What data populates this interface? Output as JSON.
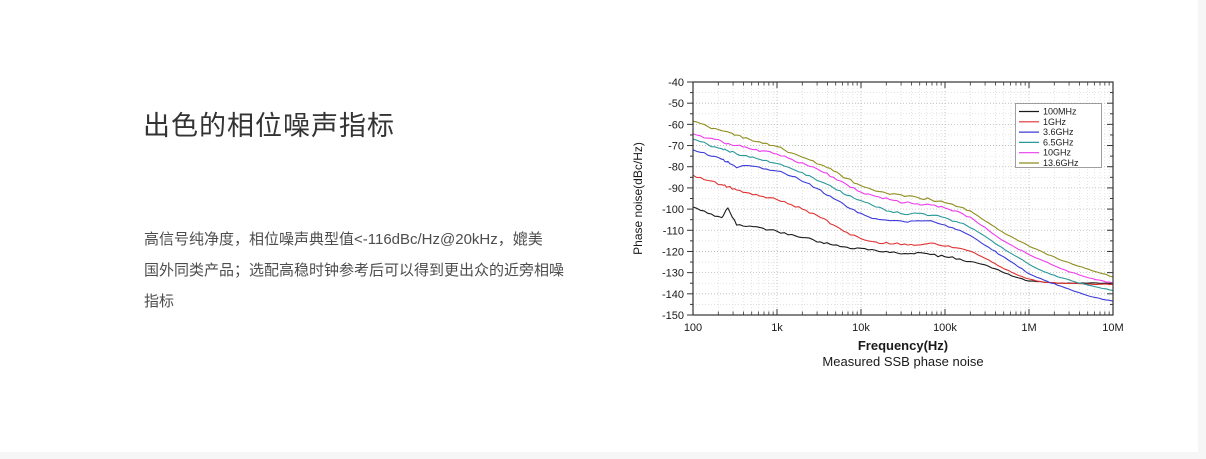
{
  "page": {
    "background_color": "#f6f6f6",
    "card_color": "#ffffff"
  },
  "section": {
    "title": "出色的相位噪声指标",
    "description": "高信号纯净度，相位噪声典型值<-116dBc/Hz@20kHz，媲美\n国外同类产品；选配高稳时钟参考后可以得到更出众的近旁相噪\n指标"
  },
  "chart_data": {
    "type": "line",
    "title": "Measured SSB phase noise",
    "xlabel": "Frequency(Hz)",
    "ylabel": "Phase noise(dBc/Hz)",
    "x_scale": "log",
    "xlim": [
      100,
      10000000
    ],
    "ylim": [
      -150,
      -40
    ],
    "x_tick_labels": [
      "100",
      "1k",
      "10k",
      "100k",
      "1M",
      "10M"
    ],
    "y_ticks": [
      -40,
      -50,
      -60,
      -70,
      -80,
      -90,
      -100,
      -110,
      -120,
      -130,
      -140,
      -150
    ],
    "grid": "dotted major and minor",
    "legend_position": "top-right",
    "frame_color": "#333333",
    "x": [
      100,
      150,
      220,
      260,
      330,
      470,
      680,
      1000,
      1500,
      2200,
      3300,
      4700,
      6800,
      10000,
      15000,
      22000,
      33000,
      47000,
      68000,
      100000,
      150000,
      220000,
      330000,
      470000,
      680000,
      1000000,
      1500000,
      2200000,
      3300000,
      4700000,
      6800000,
      10000000
    ],
    "series": [
      {
        "name": "100MHz",
        "color": "#1a1a1a",
        "values": [
          -99,
          -102,
          -104,
          -99.5,
          -107.5,
          -108,
          -109,
          -110.5,
          -112,
          -113.5,
          -115.5,
          -117,
          -118,
          -118.5,
          -119.5,
          -120.5,
          -121,
          -120.5,
          -121.5,
          -122.5,
          -123.5,
          -125,
          -127,
          -129.5,
          -132,
          -134,
          -134.5,
          -135,
          -135,
          -135,
          -135,
          -135
        ]
      },
      {
        "name": "1GHz",
        "color": "#e03232",
        "values": [
          -84,
          -86.5,
          -88.5,
          -89.5,
          -91,
          -92.5,
          -94,
          -95.5,
          -98,
          -100.5,
          -104,
          -107.5,
          -111,
          -114,
          -115.5,
          -116.5,
          -116.5,
          -117,
          -116,
          -117.5,
          -118.5,
          -120.5,
          -124,
          -127.5,
          -130.5,
          -133,
          -134.5,
          -135,
          -135,
          -135.5,
          -135.5,
          -135.5
        ]
      },
      {
        "name": "3.6GHz",
        "color": "#3c3cd8",
        "values": [
          -72,
          -74.5,
          -76.5,
          -77.5,
          -80.5,
          -79.5,
          -81,
          -82,
          -84.5,
          -87.5,
          -91,
          -95,
          -99,
          -102,
          -104.5,
          -105.5,
          -106,
          -105.5,
          -105.5,
          -107.5,
          -110,
          -113.5,
          -118,
          -122,
          -126,
          -130.5,
          -133.5,
          -136,
          -138.5,
          -140.5,
          -142,
          -143.5
        ]
      },
      {
        "name": "6.5GHz",
        "color": "#2a9898",
        "values": [
          -67,
          -69.5,
          -71.5,
          -72.5,
          -74,
          -75.5,
          -77,
          -78.5,
          -81,
          -84,
          -87,
          -90,
          -93.5,
          -96,
          -99,
          -101,
          -102.5,
          -102,
          -103,
          -104,
          -106.5,
          -109.5,
          -114,
          -118,
          -122,
          -126,
          -129.5,
          -132,
          -134,
          -135.5,
          -137,
          -138.5
        ]
      },
      {
        "name": "10GHz",
        "color": "#ee3cee",
        "values": [
          -64.5,
          -66.5,
          -68,
          -69,
          -70,
          -71.5,
          -72.5,
          -74,
          -76.5,
          -79,
          -82,
          -85,
          -88.5,
          -92,
          -94,
          -95.5,
          -97,
          -97.5,
          -98,
          -99.5,
          -101.5,
          -105,
          -110,
          -114.5,
          -118,
          -121.5,
          -124.5,
          -127.5,
          -130,
          -132,
          -133.5,
          -135
        ]
      },
      {
        "name": "13.6GHz",
        "color": "#8e8e1e",
        "values": [
          -58.5,
          -61,
          -63,
          -63.5,
          -65,
          -67,
          -69,
          -70.5,
          -73.5,
          -76,
          -79,
          -82,
          -85.5,
          -89,
          -91.5,
          -93,
          -94,
          -94.5,
          -95.5,
          -97,
          -99,
          -102,
          -106.5,
          -110.5,
          -114,
          -117.5,
          -120.5,
          -123.5,
          -126,
          -128,
          -130,
          -132
        ]
      }
    ]
  }
}
